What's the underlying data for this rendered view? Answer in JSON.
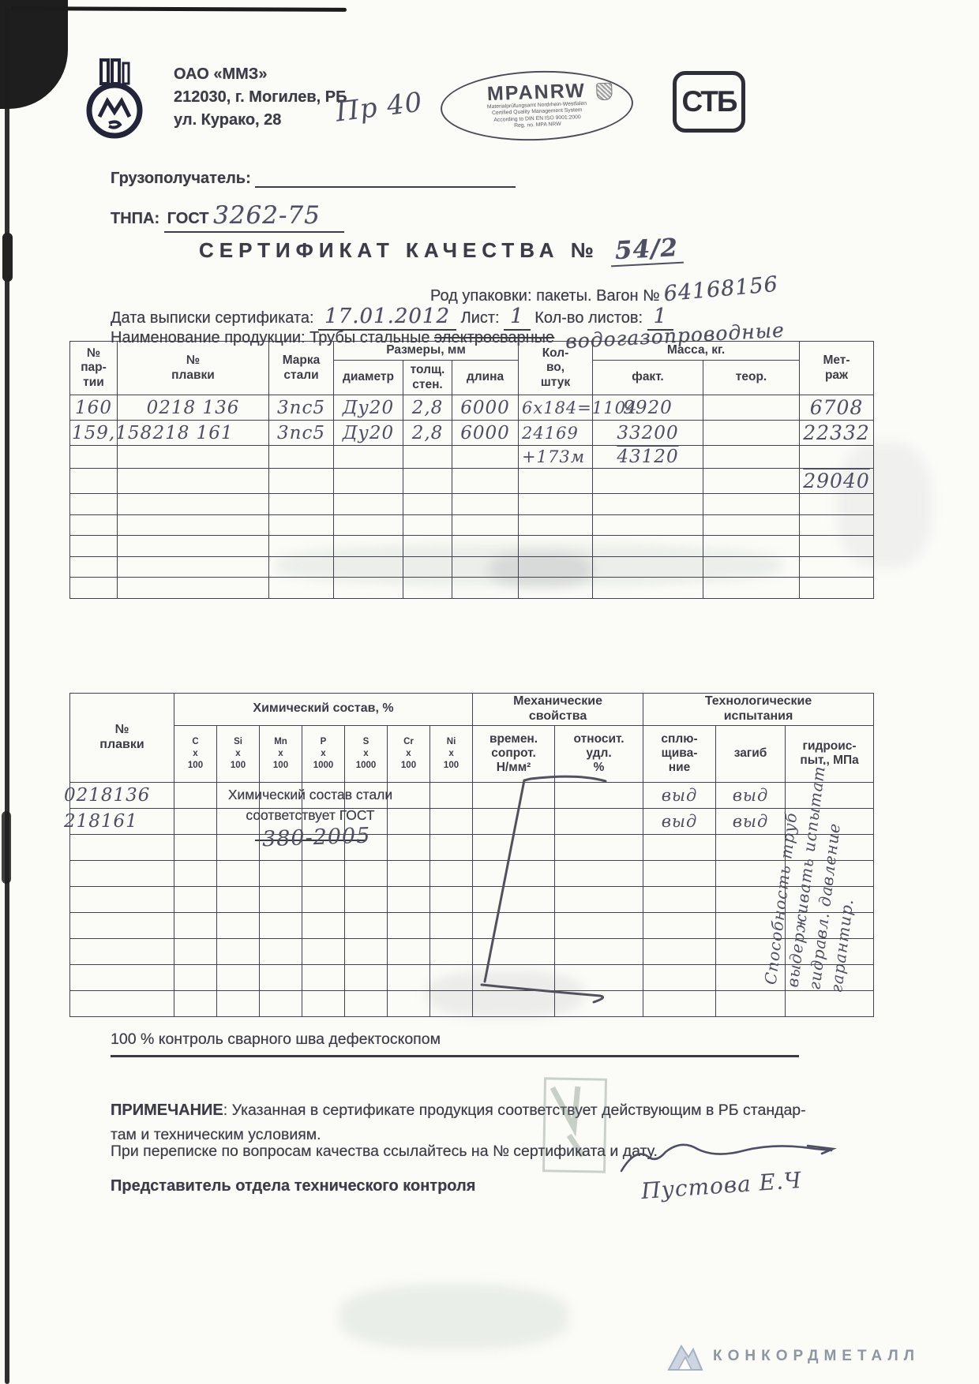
{
  "header": {
    "company": "ОАО «ММЗ»",
    "address1": "212030, г. Могилев, РБ",
    "address2": "ул. Курако, 28",
    "hw_note": "Пр 40",
    "mpa": {
      "title": "MPANRW",
      "sub1": "Materialprüfungsamt Nordrhein-Westfalen",
      "sub2": "Certified Quality Management System",
      "sub3": "According to DIN EN ISO 9001:2000",
      "sub4": "Reg. no. MPA NRW"
    },
    "stb": "СТБ"
  },
  "fields": {
    "consignee_label": "Грузополучатель:",
    "tnpa_label": "ТНПА:",
    "tnpa_gost": "ГОСТ",
    "tnpa_value": "3262-75",
    "title": "СЕРТИФИКАТ КАЧЕСТВА №",
    "cert_number": "54/2",
    "packing": "Род  упаковки: пакеты. Вагон №",
    "wagon": "64168156",
    "date_label": "Дата  выписки  сертификата:",
    "date_value": "17.01.2012",
    "sheet_label": "Лист:",
    "sheet_value": "1",
    "sheets_label": "Кол-во  листов:",
    "sheets_value": "1",
    "product_label": "Наименование  продукции: Трубы стальные",
    "product_struck": "электросварные",
    "product_hw": "водогазопроводные"
  },
  "table1": {
    "h_party": "№\nпар-\nтии",
    "h_melt": "№\nплавки",
    "h_grade": "Марка\nстали",
    "h_sizes": "Размеры, мм",
    "h_diam": "диаметр",
    "h_wall": "толщ.\nстен.",
    "h_len": "длина",
    "h_qty": "Кол-\nво,\nштук",
    "h_mass": "Масса, кг.",
    "h_fact": "факт.",
    "h_theor": "теор.",
    "h_meters": "Мет-\nраж",
    "rows": [
      [
        "160",
        "0218 136",
        "3пс5",
        "Ду20",
        "2,8",
        "6000",
        "6х184=1104",
        "9920",
        "",
        "6708"
      ],
      [
        "159,158",
        "218 161",
        "3пс5",
        "Ду20",
        "2,8",
        "6000",
        "24169",
        "33200",
        "",
        "22332"
      ],
      [
        "",
        "",
        "",
        "",
        "",
        "",
        "+173м",
        "43120",
        "",
        ""
      ],
      [
        "",
        "",
        "",
        "",
        "",
        "",
        "",
        "",
        "",
        "29040"
      ],
      [
        "",
        "",
        "",
        "",
        "",
        "",
        "",
        "",
        "",
        ""
      ],
      [
        "",
        "",
        "",
        "",
        "",
        "",
        "",
        "",
        "",
        ""
      ],
      [
        "",
        "",
        "",
        "",
        "",
        "",
        "",
        "",
        "",
        ""
      ],
      [
        "",
        "",
        "",
        "",
        "",
        "",
        "",
        "",
        "",
        ""
      ],
      [
        "",
        "",
        "",
        "",
        "",
        "",
        "",
        "",
        "",
        ""
      ]
    ]
  },
  "table2": {
    "h_melt": "№\nплавки",
    "h_chem": "Химический состав, %",
    "elements": [
      "C\nх\n100",
      "Si\nх\n100",
      "Mn\nх\n100",
      "P\nх\n1000",
      "S\nх\n1000",
      "Cr\nх\n100",
      "Ni\nх\n100"
    ],
    "h_mech": "Механические\nсвойства",
    "h_mech1": "времен.\nсопрот.\nН/мм²",
    "h_mech2": "относит.\nудл.\n%",
    "h_tech": "Технологические\nиспытания",
    "h_tech1": "сплю-\nщива-\nние",
    "h_tech2": "загиб",
    "h_tech3": "гидроис-\nпыт., МПа",
    "rows": [
      [
        "0218136",
        "",
        "",
        "",
        "",
        "",
        "",
        "",
        "",
        "",
        "выд",
        "выд",
        ""
      ],
      [
        "218161",
        "",
        "",
        "",
        "",
        "",
        "",
        "",
        "",
        "",
        "выд",
        "выд",
        ""
      ],
      [
        "",
        "",
        "",
        "",
        "",
        "",
        "",
        "",
        "",
        "",
        "",
        "",
        ""
      ],
      [
        "",
        "",
        "",
        "",
        "",
        "",
        "",
        "",
        "",
        "",
        "",
        "",
        ""
      ],
      [
        "",
        "",
        "",
        "",
        "",
        "",
        "",
        "",
        "",
        "",
        "",
        "",
        ""
      ],
      [
        "",
        "",
        "",
        "",
        "",
        "",
        "",
        "",
        "",
        "",
        "",
        "",
        ""
      ],
      [
        "",
        "",
        "",
        "",
        "",
        "",
        "",
        "",
        "",
        "",
        "",
        "",
        ""
      ],
      [
        "",
        "",
        "",
        "",
        "",
        "",
        "",
        "",
        "",
        "",
        "",
        "",
        ""
      ],
      [
        "",
        "",
        "",
        "",
        "",
        "",
        "",
        "",
        "",
        "",
        "",
        "",
        ""
      ]
    ]
  },
  "chem_note": {
    "line1": "Химический состав стали",
    "line2": "соответствует ГОСТ",
    "value": "380-2005"
  },
  "vertical_note": "Способность труб\nвыдерживать испытат.\nгидравл. давление\nгарантир.",
  "weld_note": "100 %   контроль сварного шва дефектоскопом",
  "note": {
    "label": "ПРИМЕЧАНИЕ",
    "text": ": Указанная в сертификате продукция соответствует действующим в РБ стандар-\nтам и  техническим  условиям."
  },
  "correspondence": "При переписке по вопросам качества ссылайтесь на № сертификата и дату.",
  "representative": "Представитель отдела технического контроля",
  "signature": "Пустова Е.Ч",
  "footer": {
    "brand": "КОНКОРДМЕТАЛЛ"
  },
  "colors": {
    "ink": "#3c3c46",
    "pencil": "#4f4f63",
    "brand_gray": "#8e96a2"
  }
}
